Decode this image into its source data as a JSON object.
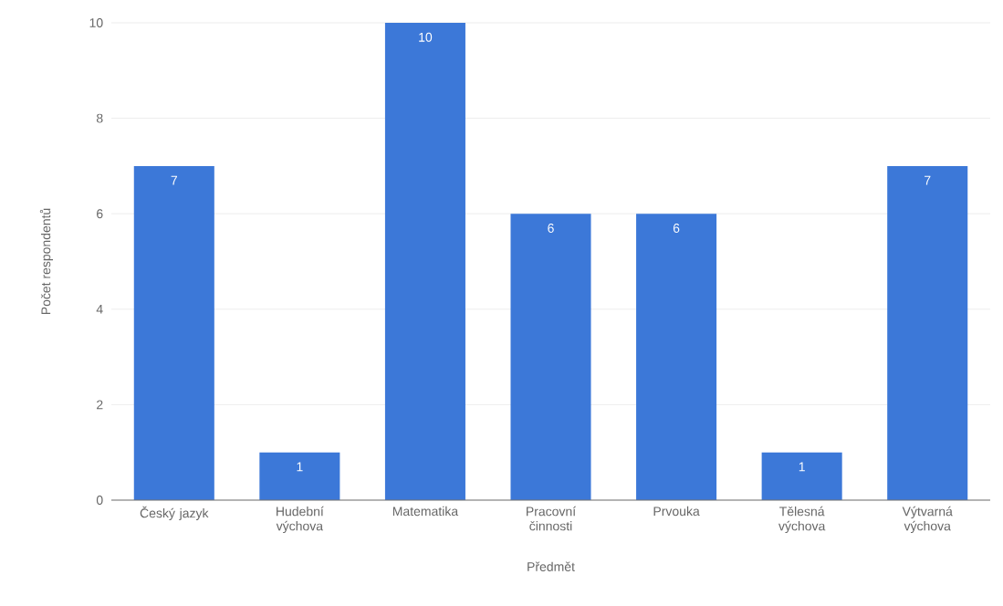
{
  "chart_data": {
    "type": "bar",
    "xlabel": "Předmět",
    "ylabel": "Počet respondentů",
    "categories": [
      "Český jazyk",
      "Hudební výchova",
      "Matematika",
      "Pracovní činnosti",
      "Prvouka",
      "Tělesná výchova",
      "Výtvarná výchova"
    ],
    "values": [
      7,
      1,
      10,
      6,
      6,
      1,
      7
    ],
    "color": "#3c78d8",
    "ylim": [
      0,
      10
    ],
    "yticks": [
      0,
      2,
      4,
      6,
      8,
      10
    ],
    "grid": "y",
    "data_labels": true
  }
}
